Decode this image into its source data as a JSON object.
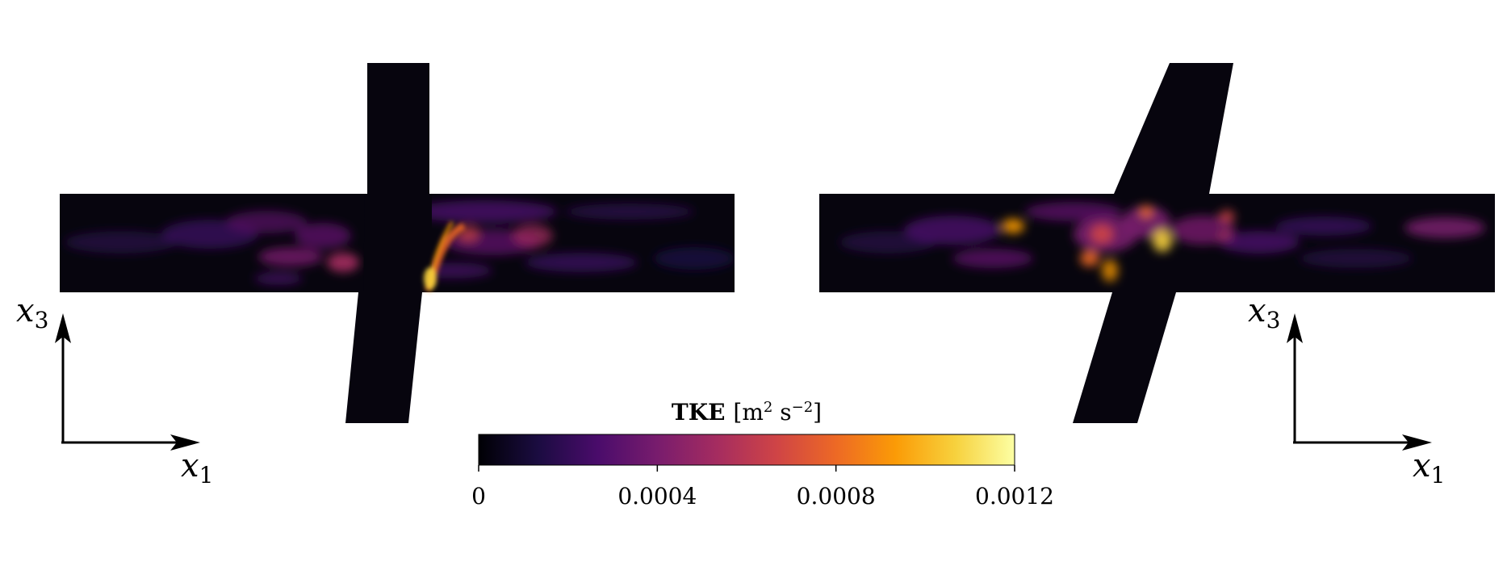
{
  "chart_data": {
    "type": "heatmap",
    "panels": [
      {
        "name": "left",
        "axes": {
          "horizontal": "x",
          "vertical": "x",
          "horizontal_sub": "1",
          "vertical_sub": "3"
        }
      },
      {
        "name": "right",
        "axes": {
          "horizontal": "x",
          "vertical": "x",
          "horizontal_sub": "1",
          "vertical_sub": "3"
        }
      }
    ],
    "colorbar": {
      "label_bold": "TKE",
      "unit_open": "[m",
      "unit_exp1": "2",
      "unit_mid": " s",
      "unit_exp2": "−2",
      "unit_close": "]",
      "range": [
        0,
        0.0012
      ],
      "ticks": [
        0,
        0.0004,
        0.0008,
        0.0012
      ],
      "tick_labels": [
        "0",
        "0.0004",
        "0.0008",
        "0.0012"
      ],
      "colormap": "inferno",
      "colors": [
        "#000004",
        "#1b0c41",
        "#4a0c6b",
        "#781c6d",
        "#a52c60",
        "#cf4446",
        "#ed6925",
        "#fb9b06",
        "#f7d13d",
        "#fcffa4"
      ]
    }
  }
}
